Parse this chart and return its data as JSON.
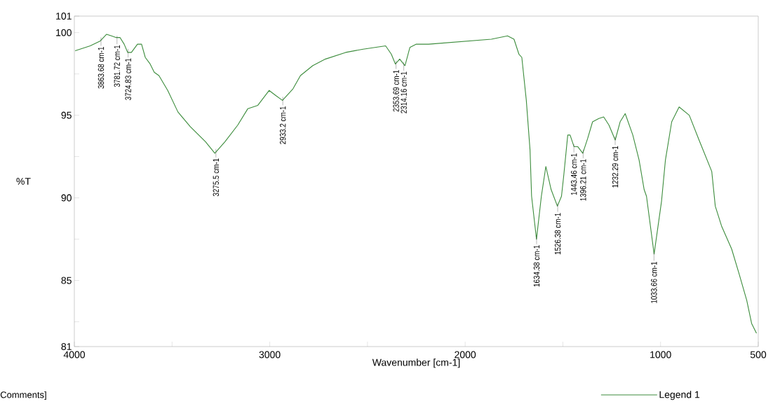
{
  "chart_data": {
    "type": "line",
    "xlabel": "Wavenumber [cm-1]",
    "ylabel": "%T",
    "xlim": [
      4000,
      500
    ],
    "ylim": [
      81,
      101
    ],
    "xticks": [
      4000,
      {
        "value": 3500,
        "label": null
      },
      3000,
      {
        "value": 2500,
        "label": null
      },
      2000,
      {
        "value": 1500,
        "label": null
      },
      1000,
      500
    ],
    "yticks": [
      81,
      {
        "value": 82.5,
        "label": null
      },
      85,
      {
        "value": 87.5,
        "label": null
      },
      90,
      {
        "value": 92.5,
        "label": null
      },
      95,
      {
        "value": 97.5,
        "label": null
      },
      100,
      101
    ],
    "legend": "bottom right",
    "series": [
      {
        "name": "Legend 1",
        "color": "#3c8c3c",
        "x": [
          3996,
          3919,
          3867,
          3835,
          3810,
          3785,
          3766,
          3745,
          3727,
          3708,
          3677,
          3656,
          3637,
          3612,
          3591,
          3567,
          3522,
          3470,
          3406,
          3329,
          3281,
          3229,
          3164,
          3112,
          3061,
          3003,
          2970,
          2935,
          2881,
          2843,
          2780,
          2715,
          2612,
          2522,
          2407,
          2378,
          2357,
          2335,
          2308,
          2283,
          2250,
          2187,
          1866,
          1783,
          1750,
          1725,
          1710,
          1687,
          1668,
          1660,
          1635,
          1610,
          1587,
          1560,
          1528,
          1507,
          1495,
          1475,
          1463,
          1443,
          1424,
          1398,
          1373,
          1348,
          1316,
          1291,
          1264,
          1232,
          1207,
          1181,
          1142,
          1110,
          1084,
          1072,
          1033,
          995,
          975,
          943,
          905,
          853,
          803,
          738,
          720,
          688,
          636,
          598,
          559,
          534,
          509
        ],
        "values": [
          98.9,
          99.2,
          99.5,
          99.9,
          99.8,
          99.7,
          99.7,
          99.3,
          98.8,
          98.8,
          99.3,
          99.3,
          98.5,
          98.1,
          97.6,
          97.4,
          96.5,
          95.2,
          94.3,
          93.4,
          92.7,
          93.4,
          94.4,
          95.4,
          95.6,
          96.5,
          96.2,
          95.9,
          96.6,
          97.4,
          98.0,
          98.4,
          98.8,
          99.0,
          99.2,
          98.7,
          98.1,
          98.4,
          98.0,
          99.1,
          99.3,
          99.3,
          99.6,
          99.8,
          99.6,
          98.7,
          98.5,
          95.9,
          92.9,
          90.1,
          87.5,
          90.1,
          91.9,
          90.5,
          89.5,
          90.1,
          91.4,
          93.8,
          93.8,
          93.1,
          93.1,
          92.7,
          93.6,
          94.6,
          94.8,
          94.9,
          94.4,
          93.5,
          94.6,
          95.1,
          93.8,
          92.3,
          90.5,
          90.1,
          86.6,
          89.8,
          92.3,
          94.6,
          95.5,
          95.0,
          93.5,
          91.6,
          89.5,
          88.3,
          86.9,
          85.4,
          83.8,
          82.4,
          81.8
        ]
      }
    ],
    "annotations": [
      {
        "text": "3863.68 cm-1",
        "x": 3863.68,
        "y": 99.5
      },
      {
        "text": "3781.72 cm-1",
        "x": 3781.72,
        "y": 99.6
      },
      {
        "text": "3724.83 cm-1",
        "x": 3724.83,
        "y": 98.8
      },
      {
        "text": "3275.5 cm-1",
        "x": 3275.5,
        "y": 92.75
      },
      {
        "text": "2933.2 cm-1",
        "x": 2933.2,
        "y": 95.9
      },
      {
        "text": "2353.69 cm-1",
        "x": 2353.69,
        "y": 98.1
      },
      {
        "text": "2314.16 cm-1",
        "x": 2314.16,
        "y": 98.0
      },
      {
        "text": "1634.38 cm-1",
        "x": 1634.38,
        "y": 87.5
      },
      {
        "text": "1526.38 cm-1",
        "x": 1526.38,
        "y": 89.45
      },
      {
        "text": "1443.46 cm-1",
        "x": 1443.46,
        "y": 93.05
      },
      {
        "text": "1396.21 cm-1",
        "x": 1396.21,
        "y": 92.7
      },
      {
        "text": "1232.29 cm-1",
        "x": 1232.29,
        "y": 93.5
      },
      {
        "text": "1033.66 cm-1",
        "x": 1033.66,
        "y": 86.5
      },
      "Comments]"
    ]
  }
}
